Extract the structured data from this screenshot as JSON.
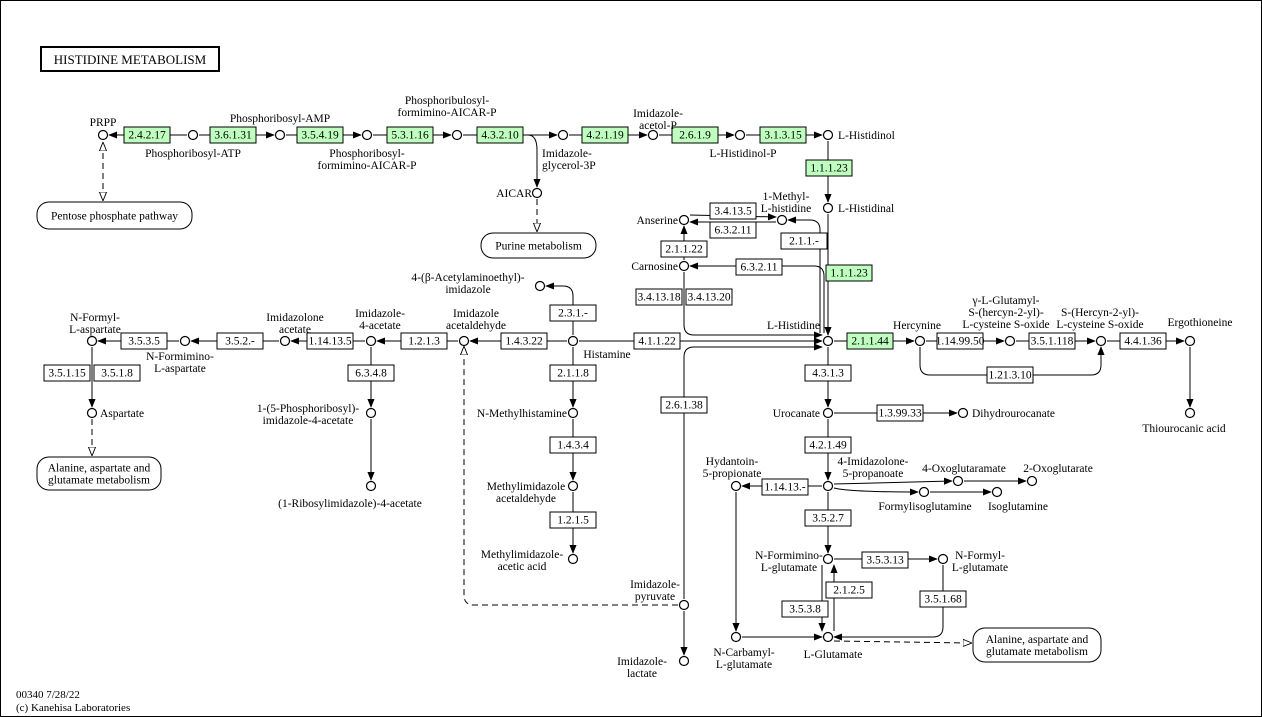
{
  "title": "HISTIDINE METABOLISM",
  "footer": {
    "line1": "00340 7/28/22",
    "line2": "(c) Kanehisa Laboratories"
  },
  "colors": {
    "highlight": "#bfffbf",
    "normal": "#ffffff",
    "line": "#000000"
  },
  "enzymes": [
    {
      "id": "e1",
      "label": "2.4.2.17",
      "highlighted": true
    },
    {
      "id": "e2",
      "label": "3.6.1.31",
      "highlighted": true
    },
    {
      "id": "e3",
      "label": "3.5.4.19",
      "highlighted": true
    },
    {
      "id": "e4",
      "label": "5.3.1.16",
      "highlighted": true
    },
    {
      "id": "e5",
      "label": "4.3.2.10",
      "highlighted": true
    },
    {
      "id": "e6",
      "label": "4.2.1.19",
      "highlighted": true
    },
    {
      "id": "e7",
      "label": "2.6.1.9",
      "highlighted": true
    },
    {
      "id": "e8",
      "label": "3.1.3.15",
      "highlighted": true
    },
    {
      "id": "e9",
      "label": "1.1.1.23",
      "highlighted": true
    },
    {
      "id": "e10",
      "label": "3.4.13.5",
      "highlighted": false
    },
    {
      "id": "e11",
      "label": "6.3.2.11",
      "highlighted": false
    },
    {
      "id": "e12",
      "label": "2.1.1.-",
      "highlighted": false
    },
    {
      "id": "e13",
      "label": "2.1.1.22",
      "highlighted": false
    },
    {
      "id": "e14",
      "label": "6.3.2.11",
      "highlighted": false
    },
    {
      "id": "e15",
      "label": "1.1.1.23",
      "highlighted": true
    },
    {
      "id": "e16",
      "label": "3.4.13.18",
      "highlighted": false
    },
    {
      "id": "e17",
      "label": "3.4.13.20",
      "highlighted": false
    },
    {
      "id": "e18",
      "label": "2.1.1.44",
      "highlighted": true
    },
    {
      "id": "e19",
      "label": "1.14.99.50",
      "highlighted": false
    },
    {
      "id": "e20",
      "label": "3.5.1.118",
      "highlighted": false
    },
    {
      "id": "e21",
      "label": "4.4.1.36",
      "highlighted": false
    },
    {
      "id": "e22",
      "label": "1.21.3.10",
      "highlighted": false
    },
    {
      "id": "e23",
      "label": "4.1.1.22",
      "highlighted": false
    },
    {
      "id": "e24",
      "label": "1.4.3.22",
      "highlighted": false
    },
    {
      "id": "e25",
      "label": "2.3.1.-",
      "highlighted": false
    },
    {
      "id": "e26",
      "label": "2.1.1.8",
      "highlighted": false
    },
    {
      "id": "e27",
      "label": "1.2.1.3",
      "highlighted": false
    },
    {
      "id": "e28",
      "label": "1.14.13.5",
      "highlighted": false
    },
    {
      "id": "e29",
      "label": "3.5.2.-",
      "highlighted": false
    },
    {
      "id": "e30",
      "label": "3.5.3.5",
      "highlighted": false
    },
    {
      "id": "e31",
      "label": "3.5.1.15",
      "highlighted": false
    },
    {
      "id": "e32",
      "label": "3.5.1.8",
      "highlighted": false
    },
    {
      "id": "e33",
      "label": "6.3.4.8",
      "highlighted": false
    },
    {
      "id": "e34",
      "label": "1.4.3.4",
      "highlighted": false
    },
    {
      "id": "e35",
      "label": "1.2.1.5",
      "highlighted": false
    },
    {
      "id": "e36",
      "label": "2.6.1.38",
      "highlighted": false
    },
    {
      "id": "e37",
      "label": "4.3.1.3",
      "highlighted": false
    },
    {
      "id": "e38",
      "label": "1.3.99.33",
      "highlighted": false
    },
    {
      "id": "e39",
      "label": "4.2.1.49",
      "highlighted": false
    },
    {
      "id": "e40",
      "label": "1.14.13.-",
      "highlighted": false
    },
    {
      "id": "e41",
      "label": "3.5.2.7",
      "highlighted": false
    },
    {
      "id": "e42",
      "label": "3.5.3.13",
      "highlighted": false
    },
    {
      "id": "e43",
      "label": "2.1.2.5",
      "highlighted": false
    },
    {
      "id": "e44",
      "label": "3.5.3.8",
      "highlighted": false
    },
    {
      "id": "e45",
      "label": "3.5.1.68",
      "highlighted": false
    }
  ],
  "compounds": [
    {
      "id": "c1",
      "label": [
        "PRPP"
      ]
    },
    {
      "id": "c2",
      "label": [
        "Phosphoribosyl-ATP"
      ]
    },
    {
      "id": "c3",
      "label": [
        "Phosphoribosyl-AMP"
      ]
    },
    {
      "id": "c4",
      "label": [
        "Phosphoribosyl-",
        "formimino-AICAR-P"
      ]
    },
    {
      "id": "c5",
      "label": [
        "Phosphoribulosyl-",
        "formimino-AICAR-P"
      ]
    },
    {
      "id": "c6",
      "label": [
        "Imidazole-",
        "glycerol-3P"
      ]
    },
    {
      "id": "c7",
      "label": [
        "AICAR"
      ]
    },
    {
      "id": "c8",
      "label": [
        "Imidazole-",
        "acetol-P"
      ]
    },
    {
      "id": "c9",
      "label": [
        "L-Histidinol-P"
      ]
    },
    {
      "id": "c10",
      "label": [
        "L-Histidinol"
      ]
    },
    {
      "id": "c11",
      "label": [
        "L-Histidinal"
      ]
    },
    {
      "id": "c12",
      "label": [
        "1-Methyl-",
        "L-histidine"
      ]
    },
    {
      "id": "c13",
      "label": [
        "Anserine"
      ]
    },
    {
      "id": "c14",
      "label": [
        "Carnosine"
      ]
    },
    {
      "id": "c15",
      "label": [
        "L-Histidine"
      ]
    },
    {
      "id": "c16",
      "label": [
        "Hercynine"
      ]
    },
    {
      "id": "c17",
      "label": [
        "γ-L-Glutamyl-",
        "S-(hercyn-2-yl)-",
        "L-cysteine S-oxide"
      ]
    },
    {
      "id": "c18",
      "label": [
        "S-(Hercyn-2-yl)-",
        "L-cysteine S-oxide"
      ]
    },
    {
      "id": "c19",
      "label": [
        "Ergothioneine"
      ]
    },
    {
      "id": "c20",
      "label": [
        "Thiourocanic acid"
      ]
    },
    {
      "id": "c21",
      "label": [
        "Histamine"
      ]
    },
    {
      "id": "c22",
      "label": [
        "4-(β-Acetylaminoethyl)-",
        "imidazole"
      ]
    },
    {
      "id": "c23",
      "label": [
        "Imidazole",
        "acetaldehyde"
      ]
    },
    {
      "id": "c24",
      "label": [
        "Imidazole-",
        "4-acetate"
      ]
    },
    {
      "id": "c25",
      "label": [
        "Imidazolone",
        "acetate"
      ]
    },
    {
      "id": "c26",
      "label": [
        "N-Formimino-",
        "L-aspartate"
      ]
    },
    {
      "id": "c27",
      "label": [
        "N-Formyl-",
        "L-aspartate"
      ]
    },
    {
      "id": "c28",
      "label": [
        "Aspartate"
      ]
    },
    {
      "id": "c29",
      "label": [
        "1-(5-Phosphoribosyl)-",
        "imidazole-4-acetate"
      ]
    },
    {
      "id": "c30",
      "label": [
        "(1-Ribosylimidazole)-4-acetate"
      ]
    },
    {
      "id": "c31",
      "label": [
        "N-Methylhistamine"
      ]
    },
    {
      "id": "c32",
      "label": [
        "Methylimidazole",
        "acetaldehyde"
      ]
    },
    {
      "id": "c33",
      "label": [
        "Methylimidazole-",
        "acetic acid"
      ]
    },
    {
      "id": "c34",
      "label": [
        "Imidazole-",
        "pyruvate"
      ]
    },
    {
      "id": "c35",
      "label": [
        "Imidazole-",
        "lactate"
      ]
    },
    {
      "id": "c36",
      "label": [
        "Urocanate"
      ]
    },
    {
      "id": "c37",
      "label": [
        "Dihydrourocanate"
      ]
    },
    {
      "id": "c38",
      "label": [
        "4-Imidazolone-",
        "5-propanoate"
      ]
    },
    {
      "id": "c39",
      "label": [
        "Hydantoin-",
        "5-propionate"
      ]
    },
    {
      "id": "c40",
      "label": [
        "4-Oxoglutaramate"
      ]
    },
    {
      "id": "c41",
      "label": [
        "2-Oxoglutarate"
      ]
    },
    {
      "id": "c42",
      "label": [
        "Formylisoglutamine"
      ]
    },
    {
      "id": "c43",
      "label": [
        "Isoglutamine"
      ]
    },
    {
      "id": "c44",
      "label": [
        "N-Formimino-",
        "L-glutamate"
      ]
    },
    {
      "id": "c45",
      "label": [
        "N-Formyl-",
        "L-glutamate"
      ]
    },
    {
      "id": "c46",
      "label": [
        "N-Carbamyl-",
        "L-glutamate"
      ]
    },
    {
      "id": "c47",
      "label": [
        "L-Glutamate"
      ]
    }
  ],
  "maps": [
    {
      "id": "m1",
      "label": [
        "Pentose phosphate pathway"
      ]
    },
    {
      "id": "m2",
      "label": [
        "Purine metabolism"
      ]
    },
    {
      "id": "m3",
      "label": [
        "Alanine, aspartate and",
        "glutamate metabolism"
      ]
    },
    {
      "id": "m4",
      "label": [
        "Alanine, aspartate and",
        "glutamate metabolism"
      ]
    }
  ]
}
